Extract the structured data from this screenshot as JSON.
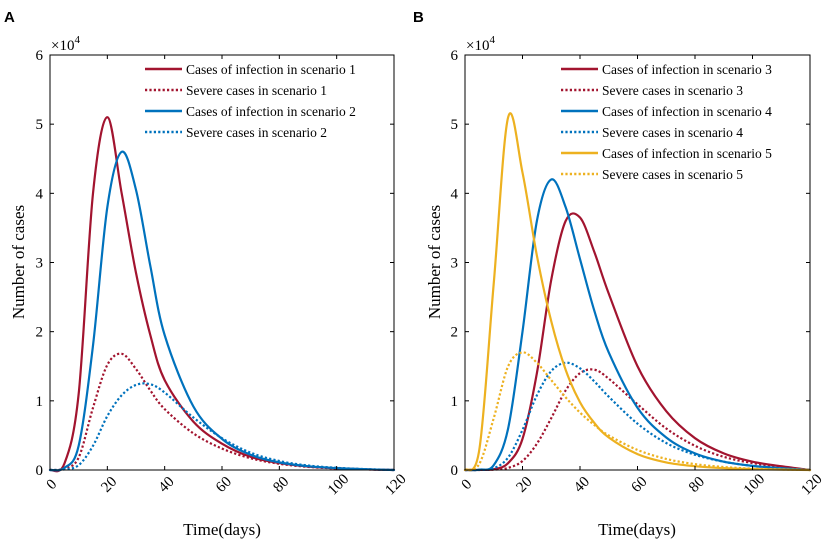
{
  "chart_data": [
    {
      "panel": "A",
      "type": "line",
      "xlabel": "Time(days)",
      "ylabel": "Number of cases",
      "xlim": [
        0,
        120
      ],
      "ylim": [
        0,
        60000
      ],
      "xticks": [
        "0",
        "20",
        "40",
        "60",
        "80",
        "100",
        "120"
      ],
      "yticks": [
        "0",
        "1",
        "2",
        "3",
        "4",
        "5",
        "6"
      ],
      "y_exponent": {
        "base": "×10",
        "power": "4"
      },
      "legend_position": "top-right",
      "x": [
        0,
        5,
        10,
        15,
        20,
        25,
        30,
        35,
        40,
        50,
        60,
        70,
        80,
        90,
        100,
        110,
        120
      ],
      "series": [
        {
          "name": "Cases of infection in scenario 1",
          "color": "#a2142f",
          "style": "solid",
          "values": [
            0,
            900,
            11000,
            40000,
            51000,
            40000,
            28500,
            19500,
            13000,
            7000,
            3800,
            1900,
            1000,
            500,
            250,
            100,
            0
          ]
        },
        {
          "name": "Severe cases in scenario 1",
          "color": "#a2142f",
          "style": "dotted",
          "values": [
            0,
            200,
            1800,
            9000,
            15200,
            16800,
            14600,
            11500,
            8800,
            5300,
            3100,
            1700,
            900,
            450,
            220,
            90,
            0
          ]
        },
        {
          "name": "Cases of infection in scenario 2",
          "color": "#0072bd",
          "style": "solid",
          "values": [
            0,
            300,
            3500,
            18000,
            38000,
            46000,
            40500,
            29500,
            19500,
            9200,
            4500,
            2200,
            1100,
            550,
            270,
            110,
            0
          ]
        },
        {
          "name": "Severe cases in scenario 2",
          "color": "#0072bd",
          "style": "dotted",
          "values": [
            0,
            80,
            700,
            3500,
            7800,
            10800,
            12300,
            12400,
            11200,
            7600,
            4600,
            2500,
            1300,
            650,
            320,
            130,
            0
          ]
        }
      ]
    },
    {
      "panel": "B",
      "type": "line",
      "xlabel": "Time(days)",
      "ylabel": "Number of cases",
      "xlim": [
        0,
        120
      ],
      "ylim": [
        0,
        60000
      ],
      "xticks": [
        "0",
        "20",
        "40",
        "60",
        "80",
        "100",
        "120"
      ],
      "yticks": [
        "0",
        "1",
        "2",
        "3",
        "4",
        "5",
        "6"
      ],
      "y_exponent": {
        "base": "×10",
        "power": "4"
      },
      "legend_position": "top-right",
      "x": [
        0,
        5,
        10,
        15,
        20,
        25,
        30,
        35,
        40,
        45,
        50,
        60,
        70,
        80,
        90,
        100,
        110,
        120
      ],
      "series": [
        {
          "name": "Cases of infection in scenario 3",
          "color": "#a2142f",
          "style": "solid",
          "values": [
            0,
            10,
            120,
            1000,
            4500,
            14000,
            27500,
            36000,
            36500,
            31500,
            25500,
            15000,
            8500,
            4600,
            2400,
            1200,
            550,
            0
          ]
        },
        {
          "name": "Severe cases in scenario 3",
          "color": "#a2142f",
          "style": "dotted",
          "values": [
            0,
            5,
            50,
            300,
            1300,
            3800,
            7500,
            11500,
            14000,
            14500,
            13200,
            9500,
            6000,
            3500,
            1900,
            1000,
            450,
            0
          ]
        },
        {
          "name": "Cases of infection in scenario 4",
          "color": "#0072bd",
          "style": "solid",
          "values": [
            0,
            50,
            700,
            6000,
            20000,
            36000,
            42000,
            38000,
            30500,
            23000,
            17000,
            9000,
            4700,
            2400,
            1200,
            600,
            250,
            0
          ]
        },
        {
          "name": "Severe cases in scenario 4",
          "color": "#0072bd",
          "style": "dotted",
          "values": [
            0,
            20,
            250,
            1800,
            5800,
            10800,
            14300,
            15500,
            14700,
            12800,
            10600,
            6700,
            3900,
            2200,
            1200,
            600,
            250,
            0
          ]
        },
        {
          "name": "Cases of infection in scenario 5",
          "color": "#edb120",
          "style": "solid",
          "values": [
            0,
            3000,
            27000,
            51000,
            43000,
            31000,
            21500,
            14500,
            9800,
            6800,
            4700,
            2300,
            1100,
            550,
            270,
            130,
            50,
            0
          ]
        },
        {
          "name": "Severe cases in scenario 5",
          "color": "#edb120",
          "style": "dotted",
          "values": [
            0,
            900,
            7500,
            15000,
            17000,
            15500,
            13000,
            10500,
            8300,
            6500,
            5000,
            2900,
            1600,
            850,
            430,
            200,
            80,
            0
          ]
        }
      ]
    }
  ]
}
